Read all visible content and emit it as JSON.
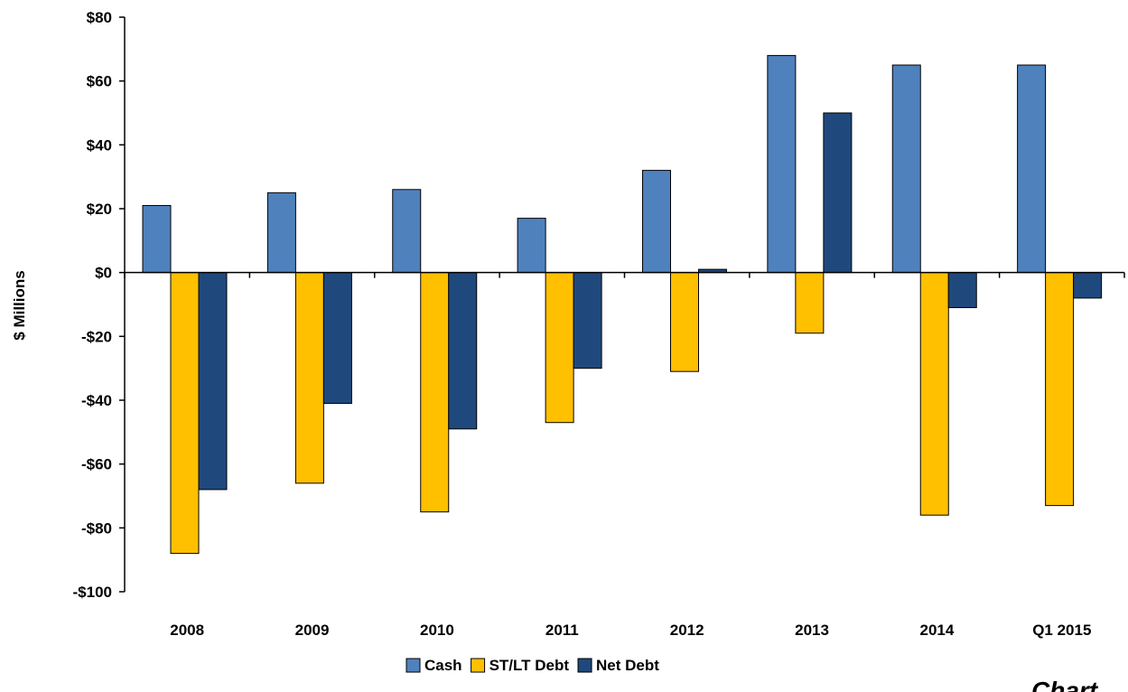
{
  "chart_data": {
    "type": "bar",
    "title": "",
    "xlabel": "",
    "ylabel": "$ Millions",
    "ylim": [
      -100,
      80
    ],
    "yticks": [
      80,
      60,
      40,
      20,
      0,
      -20,
      -40,
      -60,
      -80,
      -100
    ],
    "ytick_labels": [
      "$80",
      "$60",
      "$40",
      "$20",
      "$0",
      "-$20",
      "-$40",
      "-$60",
      "-$80",
      "-$100"
    ],
    "categories": [
      "2008",
      "2009",
      "2010",
      "2011",
      "2012",
      "2013",
      "2014",
      "Q1 2015"
    ],
    "series": [
      {
        "name": "Cash",
        "color": "#4F81BD",
        "values": [
          21,
          25,
          26,
          17,
          32,
          68,
          65,
          65
        ]
      },
      {
        "name": "ST/LT Debt",
        "color": "#FFC000",
        "values": [
          -88,
          -66,
          -75,
          -47,
          -31,
          -19,
          -76,
          -73
        ]
      },
      {
        "name": "Net Debt",
        "color": "#1F497D",
        "values": [
          -68,
          -41,
          -49,
          -30,
          1,
          50,
          -11,
          -8
        ]
      }
    ],
    "grid": false,
    "legend_position": "bottom-center"
  },
  "watermark_text": "Chart"
}
